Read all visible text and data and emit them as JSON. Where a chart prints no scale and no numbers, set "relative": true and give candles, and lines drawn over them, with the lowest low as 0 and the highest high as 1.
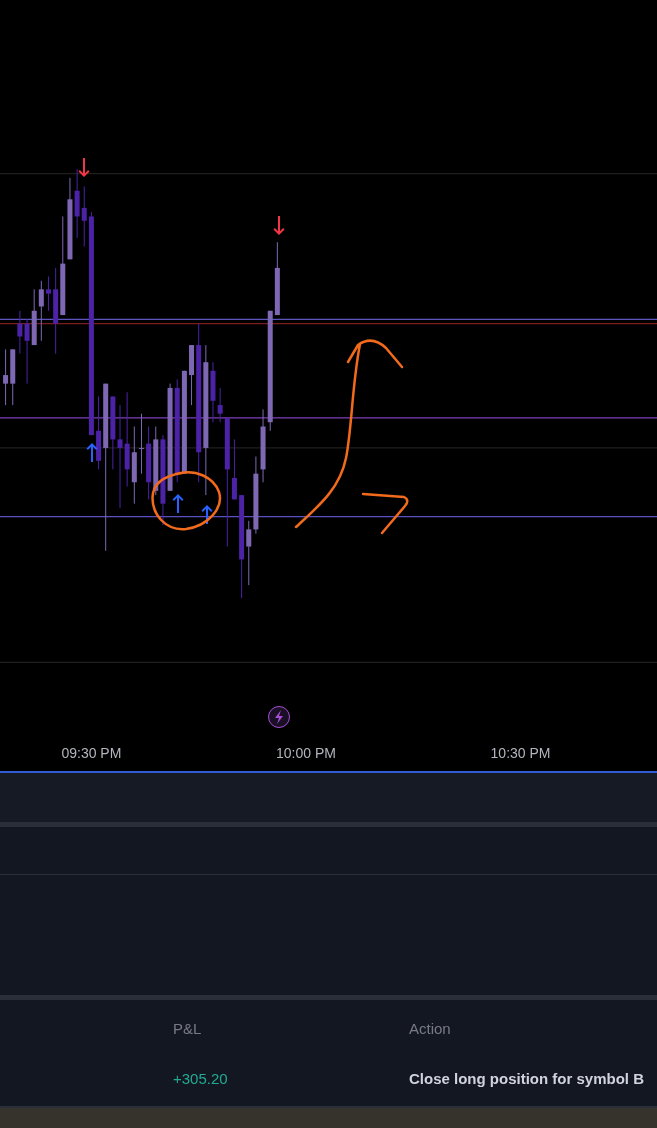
{
  "chart_data": [
    {
      "type": "candlestick",
      "relative": true,
      "x": [
        21.3,
        21.3167,
        21.3333,
        21.35,
        21.3667,
        21.3833,
        21.4,
        21.4167,
        21.4333,
        21.45,
        21.4667,
        21.4833,
        21.5,
        21.5167,
        21.5333,
        21.55,
        21.5667,
        21.5833,
        21.6,
        21.6167,
        21.6333,
        21.65,
        21.6667,
        21.6833,
        21.7,
        21.7167,
        21.7333,
        21.75,
        21.7667,
        21.7833,
        21.8,
        21.8167,
        21.8333,
        21.85,
        21.8667,
        21.8833,
        21.9,
        21.9167,
        21.9333
      ],
      "ohlc": [
        [
          0.5,
          0.58,
          0.45,
          0.52
        ],
        [
          0.5,
          0.58,
          0.45,
          0.58
        ],
        [
          0.64,
          0.67,
          0.57,
          0.61
        ],
        [
          0.64,
          0.65,
          0.5,
          0.6
        ],
        [
          0.59,
          0.72,
          0.59,
          0.67
        ],
        [
          0.68,
          0.74,
          0.6,
          0.72
        ],
        [
          0.72,
          0.75,
          0.67,
          0.71
        ],
        [
          0.72,
          0.77,
          0.57,
          0.64
        ],
        [
          0.66,
          0.89,
          0.66,
          0.78
        ],
        [
          0.79,
          0.98,
          0.79,
          0.93
        ],
        [
          0.95,
          1,
          0.84,
          0.89
        ],
        [
          0.91,
          0.96,
          0.82,
          0.88
        ],
        [
          0.89,
          0.9,
          0.38,
          0.38
        ],
        [
          0.39,
          0.47,
          0.3,
          0.32
        ],
        [
          0.35,
          0.5,
          0.11,
          0.5
        ],
        [
          0.47,
          0.47,
          0.3,
          0.37
        ],
        [
          0.37,
          0.45,
          0.21,
          0.35
        ],
        [
          0.36,
          0.48,
          0.26,
          0.3
        ],
        [
          0.27,
          0.4,
          0.22,
          0.34
        ],
        [
          0.35,
          0.43,
          0.29,
          0.35
        ],
        [
          0.36,
          0.4,
          0.23,
          0.27
        ],
        [
          0.25,
          0.4,
          0.24,
          0.37
        ],
        [
          0.37,
          0.38,
          0.17,
          0.22
        ],
        [
          0.25,
          0.5,
          0.25,
          0.49
        ],
        [
          0.49,
          0.51,
          0.27,
          0.29
        ],
        [
          0.29,
          0.53,
          0.29,
          0.53
        ],
        [
          0.52,
          0.59,
          0.45,
          0.59
        ],
        [
          0.59,
          0.64,
          0.27,
          0.34
        ],
        [
          0.35,
          0.59,
          0.24,
          0.55
        ],
        [
          0.53,
          0.55,
          0.41,
          0.46
        ],
        [
          0.45,
          0.49,
          0.41,
          0.43
        ],
        [
          0.42,
          0.42,
          0.12,
          0.3
        ],
        [
          0.28,
          0.37,
          0.23,
          0.23
        ],
        [
          0.24,
          0.24,
          0,
          0.09
        ],
        [
          0.12,
          0.18,
          0.03,
          0.16
        ],
        [
          0.16,
          0.33,
          0.15,
          0.29
        ],
        [
          0.3,
          0.44,
          0.27,
          0.4
        ],
        [
          0.41,
          0.67,
          0.39,
          0.67
        ],
        [
          0.66,
          0.83,
          0.66,
          0.77
        ]
      ],
      "colors": [
        "#7e68b4",
        "#7e68b4",
        "#4c22a6",
        "#4c22a6",
        "#7e68b4",
        "#7e68b4",
        "#4c22a6",
        "#4c22a6",
        "#7e68b4",
        "#7e68b4",
        "#4c22a6",
        "#4c22a6",
        "#4c22a6",
        "#4c22a6",
        "#7e68b4",
        "#4c22a6",
        "#4c22a6",
        "#4c22a6",
        "#7e68b4",
        "#7e68b4",
        "#4c22a6",
        "#7e68b4",
        "#4c22a6",
        "#7e68b4",
        "#4c22a6",
        "#7e68b4",
        "#7e68b4",
        "#4c22a6",
        "#7e68b4",
        "#4c22a6",
        "#4c22a6",
        "#4c22a6",
        "#4c22a6",
        "#4c22a6",
        "#7e68b4",
        "#7e68b4",
        "#7e68b4",
        "#7e68b4",
        "#7e68b4"
      ],
      "xlim": [
        21.287,
        22.818
      ],
      "xticks": [
        {
          "value": 21.5,
          "label": "09:30 PM"
        },
        {
          "value": 22,
          "label": "10:00 PM"
        },
        {
          "value": 22.5,
          "label": "10:30 PM"
        }
      ],
      "ref_lines": [
        {
          "axis": "y",
          "value": 0.99,
          "color": "#1f1f1f"
        },
        {
          "axis": "y",
          "value": 0.65,
          "color": "#5c55c0"
        },
        {
          "axis": "y",
          "value": 0.64,
          "color": "#7a1c1c"
        },
        {
          "axis": "y",
          "value": 0.42,
          "color": "#7e3fb8"
        },
        {
          "axis": "y",
          "value": 0.35,
          "color": "#1f1f1f"
        },
        {
          "axis": "y",
          "value": 0.19,
          "color": "#5a50c0"
        },
        {
          "axis": "y",
          "value": -0.15,
          "color": "#1f1f1f"
        }
      ]
    },
    {
      "type": "other",
      "annotations": [
        "P&L",
        "Action",
        "+305.20",
        "Close long position for symbol B"
      ]
    }
  ]
}
